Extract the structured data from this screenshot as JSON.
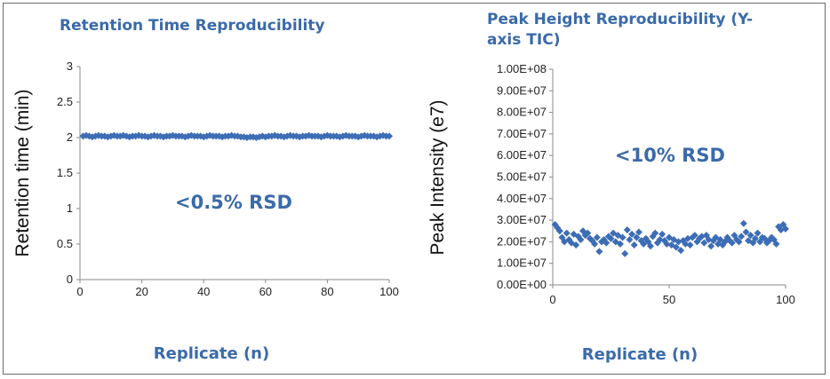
{
  "chart_data": [
    {
      "type": "scatter",
      "title": "Retention Time Reproducibility",
      "annotation": "<0.5% RSD",
      "xlabel": "Replicate (n)",
      "ylabel": "Retention time (min)",
      "xlim": [
        0,
        100
      ],
      "ylim": [
        0,
        3
      ],
      "xticks": [
        "0",
        "20",
        "40",
        "60",
        "80",
        "100"
      ],
      "yticks": [
        "0",
        "0.5",
        "1",
        "1.5",
        "2",
        "2.5",
        "3"
      ],
      "grid": false,
      "marker_color": "#3d6db5",
      "series": [
        {
          "x": [
            1,
            2,
            3,
            4,
            5,
            6,
            7,
            8,
            9,
            10,
            11,
            12,
            13,
            14,
            15,
            16,
            17,
            18,
            19,
            20,
            21,
            22,
            23,
            24,
            25,
            26,
            27,
            28,
            29,
            30,
            31,
            32,
            33,
            34,
            35,
            36,
            37,
            38,
            39,
            40,
            41,
            42,
            43,
            44,
            45,
            46,
            47,
            48,
            49,
            50,
            51,
            52,
            53,
            54,
            55,
            56,
            57,
            58,
            59,
            60,
            61,
            62,
            63,
            64,
            65,
            66,
            67,
            68,
            69,
            70,
            71,
            72,
            73,
            74,
            75,
            76,
            77,
            78,
            79,
            80,
            81,
            82,
            83,
            84,
            85,
            86,
            87,
            88,
            89,
            90,
            91,
            92,
            93,
            94,
            95,
            96,
            97,
            98,
            99,
            100
          ],
          "values": [
            2.02,
            2.03,
            2.02,
            2.01,
            2.02,
            2.03,
            2.02,
            2.02,
            2.01,
            2.02,
            2.03,
            2.02,
            2.02,
            2.03,
            2.02,
            2.01,
            2.02,
            2.02,
            2.03,
            2.02,
            2.02,
            2.01,
            2.02,
            2.03,
            2.02,
            2.02,
            2.01,
            2.02,
            2.02,
            2.03,
            2.02,
            2.02,
            2.02,
            2.01,
            2.02,
            2.03,
            2.02,
            2.02,
            2.02,
            2.01,
            2.02,
            2.03,
            2.02,
            2.02,
            2.02,
            2.01,
            2.02,
            2.02,
            2.03,
            2.02,
            2.02,
            2.01,
            2.01,
            2.0,
            2.01,
            2.01,
            2.0,
            2.01,
            2.02,
            2.01,
            2.02,
            2.02,
            2.03,
            2.02,
            2.02,
            2.01,
            2.02,
            2.03,
            2.02,
            2.02,
            2.01,
            2.02,
            2.02,
            2.03,
            2.02,
            2.02,
            2.02,
            2.01,
            2.02,
            2.03,
            2.02,
            2.02,
            2.02,
            2.01,
            2.02,
            2.03,
            2.02,
            2.02,
            2.02,
            2.01,
            2.02,
            2.03,
            2.02,
            2.02,
            2.02,
            2.01,
            2.02,
            2.03,
            2.02,
            2.02
          ]
        }
      ]
    },
    {
      "type": "scatter",
      "title": "Peak Height Reproducibility (Y-axis TIC)",
      "title_lines": [
        "Peak Height Reproducibility (Y-",
        "axis TIC)"
      ],
      "annotation": "<10% RSD",
      "xlabel": "Replicate (n)",
      "ylabel": "Peak Intensity (e7)",
      "xlim": [
        0,
        100
      ],
      "ylim": [
        0,
        100000000
      ],
      "xticks": [
        "0",
        "50",
        "100"
      ],
      "yticks": [
        "0.00E+00",
        "1.00E+07",
        "2.00E+07",
        "3.00E+07",
        "4.00E+07",
        "5.00E+07",
        "6.00E+07",
        "7.00E+07",
        "8.00E+07",
        "9.00E+07",
        "1.00E+08"
      ],
      "grid": false,
      "marker_color": "#3d6db5",
      "series": [
        {
          "x": [
            1,
            2,
            3,
            4,
            5,
            6,
            7,
            8,
            9,
            10,
            11,
            12,
            13,
            14,
            15,
            16,
            17,
            18,
            19,
            20,
            21,
            22,
            23,
            24,
            25,
            26,
            27,
            28,
            29,
            30,
            31,
            32,
            33,
            34,
            35,
            36,
            37,
            38,
            39,
            40,
            41,
            42,
            43,
            44,
            45,
            46,
            47,
            48,
            49,
            50,
            51,
            52,
            53,
            54,
            55,
            56,
            57,
            58,
            59,
            60,
            61,
            62,
            63,
            64,
            65,
            66,
            67,
            68,
            69,
            70,
            71,
            72,
            73,
            74,
            75,
            76,
            77,
            78,
            79,
            80,
            81,
            82,
            83,
            84,
            85,
            86,
            87,
            88,
            89,
            90,
            91,
            92,
            93,
            94,
            95,
            96,
            97,
            98,
            99,
            100
          ],
          "values": [
            28000000,
            26500000,
            25000000,
            22000000,
            20000000,
            24000000,
            21000000,
            19500000,
            23500000,
            18500000,
            22500000,
            21000000,
            25000000,
            23000000,
            24000000,
            21500000,
            20500000,
            19000000,
            22000000,
            15500000,
            20000000,
            21000000,
            19500000,
            22500000,
            21500000,
            24000000,
            20000000,
            23000000,
            19000000,
            22000000,
            14500000,
            25500000,
            21000000,
            23500000,
            18500000,
            22000000,
            24500000,
            20500000,
            19000000,
            21500000,
            20000000,
            18000000,
            22500000,
            24000000,
            19500000,
            21000000,
            23500000,
            20500000,
            19000000,
            22000000,
            18500000,
            21000000,
            17500000,
            20000000,
            16000000,
            20500000,
            19000000,
            21500000,
            18500000,
            22000000,
            23000000,
            20000000,
            21500000,
            22500000,
            19500000,
            23000000,
            21000000,
            18000000,
            20500000,
            22000000,
            19000000,
            21000000,
            18500000,
            20000000,
            22000000,
            20500000,
            19500000,
            23000000,
            21000000,
            20000000,
            22500000,
            28500000,
            24500000,
            20500000,
            23000000,
            19500000,
            21500000,
            24000000,
            20000000,
            22000000,
            21500000,
            19500000,
            20500000,
            22000000,
            21000000,
            19000000,
            27000000,
            25500000,
            28000000,
            26000000
          ]
        }
      ]
    }
  ]
}
